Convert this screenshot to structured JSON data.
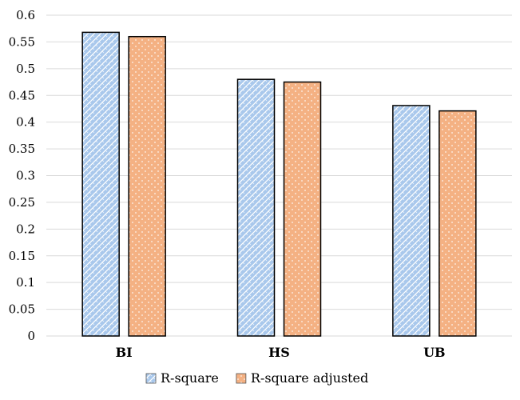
{
  "chart_data": {
    "type": "bar",
    "categories": [
      "BI",
      "HS",
      "UB"
    ],
    "series": [
      {
        "name": "R-square",
        "values": [
          0.568,
          0.48,
          0.431
        ],
        "color": "#a9c8ec",
        "pattern": "brick"
      },
      {
        "name": "R-square adjusted",
        "values": [
          0.56,
          0.475,
          0.421
        ],
        "color": "#f4b183",
        "pattern": "dots"
      }
    ],
    "title": "",
    "xlabel": "",
    "ylabel": "",
    "ylim": [
      0,
      0.6
    ],
    "yticks": [
      "0",
      "0.05",
      "0.1",
      "0.15",
      "0.2",
      "0.25",
      "0.3",
      "0.35",
      "0.4",
      "0.45",
      "0.5",
      "0.55",
      "0.6"
    ],
    "grid": true,
    "legend_position": "bottom",
    "colors": {
      "grid": "#d9d9d9",
      "bar_stroke": "#000000"
    }
  }
}
